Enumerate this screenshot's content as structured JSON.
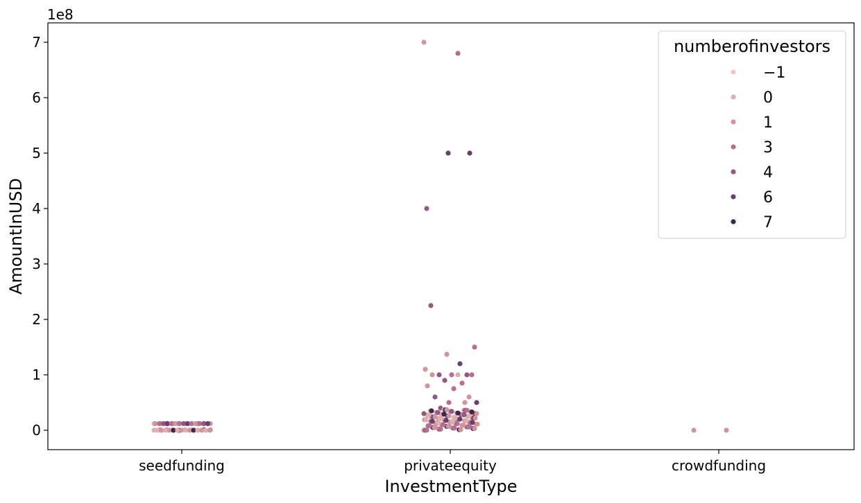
{
  "chart_data": {
    "type": "scatter",
    "subtype": "strip",
    "xlabel": "InvestmentType",
    "ylabel": "AmountInUSD",
    "offset_text": "1e8",
    "y_scale_factor": 100000000,
    "categories": [
      "seedfunding",
      "privateequity",
      "crowdfunding"
    ],
    "ylim": [
      -35000000,
      735000000
    ],
    "yticks": [
      0,
      100000000,
      200000000,
      300000000,
      400000000,
      500000000,
      600000000,
      700000000
    ],
    "ytick_labels": [
      "0",
      "1",
      "2",
      "3",
      "4",
      "5",
      "6",
      "7"
    ],
    "grid": false,
    "legend": {
      "title": "numberofinvestors",
      "position": "top-right",
      "entries": [
        {
          "label": "−1",
          "color": "#efcbbd"
        },
        {
          "label": "0",
          "color": "#ddb0ae"
        },
        {
          "label": "1",
          "color": "#d2939c"
        },
        {
          "label": "3",
          "color": "#b66f8f"
        },
        {
          "label": "4",
          "color": "#955783"
        },
        {
          "label": "6",
          "color": "#6a3f6c"
        },
        {
          "label": "7",
          "color": "#3c2747"
        }
      ]
    },
    "series": [
      {
        "name": "seedfunding",
        "hue": [
          "0",
          "1",
          "3",
          "1",
          "4",
          "0",
          "1",
          "3",
          "6",
          "1",
          "0",
          "4",
          "1",
          "3",
          "7",
          "1",
          "0",
          "1",
          "4",
          "3"
        ],
        "values": [
          12000000,
          12000000,
          12000000,
          12000000,
          12000000,
          12000000,
          12000000,
          12000000,
          12000000,
          12000000,
          0,
          500000,
          1000000,
          200000,
          0,
          800000,
          300000,
          0,
          1200000,
          600000
        ]
      },
      {
        "name": "privateequity",
        "hue": [
          "1",
          "3",
          "6",
          "6",
          "4",
          "4",
          "3",
          "1",
          "6",
          "1",
          "3",
          "4",
          "4",
          "3",
          "1",
          "0",
          "4",
          "3",
          "1",
          "3",
          "1",
          "4",
          "6",
          "3",
          "1",
          "4",
          "0",
          "3",
          "1"
        ],
        "values": [
          700000000,
          680000000,
          500000000,
          500000000,
          400000000,
          225000000,
          150000000,
          137000000,
          120000000,
          110000000,
          100000000,
          100000000,
          100000000,
          100000000,
          100000000,
          100000000,
          90000000,
          85000000,
          80000000,
          75000000,
          60000000,
          60000000,
          50000000,
          50000000,
          50000000,
          40000000,
          30000000,
          25000000,
          20000000
        ]
      },
      {
        "name": "crowdfunding",
        "hue": [
          "1",
          "1"
        ],
        "values": [
          0,
          0
        ]
      }
    ]
  }
}
